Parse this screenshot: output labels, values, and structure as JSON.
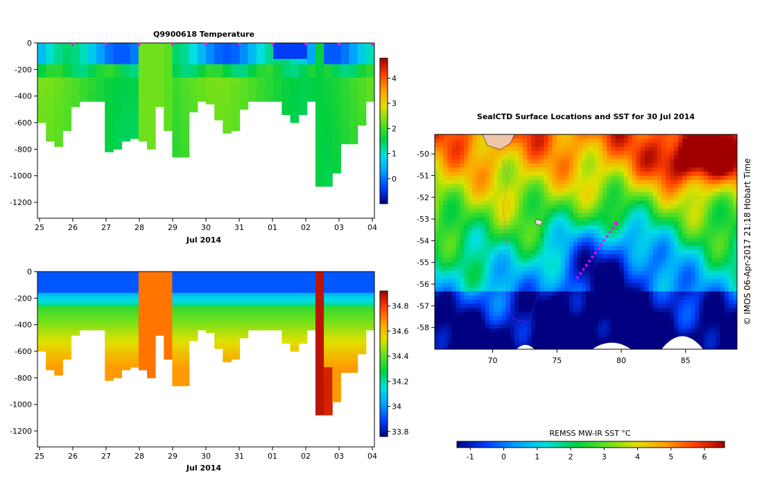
{
  "chart_data": [
    {
      "type": "heatmap",
      "title": "Q9900618  Temperature",
      "xlabel": "Jul 2014",
      "x_tick_labels": [
        "25",
        "26",
        "27",
        "28",
        "29",
        "30",
        "31",
        "01",
        "02",
        "03",
        "04"
      ],
      "y_tick_values": [
        0,
        -200,
        -400,
        -600,
        -800,
        -1000,
        -1200
      ],
      "ylim": [
        -1320,
        0
      ],
      "colorbar_ticks": [
        0,
        1,
        2,
        3,
        4
      ],
      "colorbar_range": [
        -1,
        4.8
      ],
      "colormap": [
        "#000080",
        "#0040ff",
        "#00a0ff",
        "#00e0e0",
        "#00d040",
        "#60e020",
        "#e0e000",
        "#ffa000",
        "#ff4000",
        "#a00000"
      ],
      "profile_marker_color": "#ff00ff"
    },
    {
      "type": "heatmap",
      "title": "",
      "xlabel": "Jul 2014",
      "x_tick_labels": [
        "25",
        "26",
        "27",
        "28",
        "29",
        "30",
        "31",
        "01",
        "02",
        "03",
        "04"
      ],
      "y_tick_values": [
        0,
        -200,
        -400,
        -600,
        -800,
        -1000,
        -1200
      ],
      "ylim": [
        -1320,
        0
      ],
      "colorbar_ticks": [
        33.8,
        34,
        34.2,
        34.4,
        34.6,
        34.8
      ],
      "colorbar_range": [
        33.76,
        34.92
      ],
      "colormap": [
        "#000080",
        "#0040ff",
        "#00a0ff",
        "#00e0e0",
        "#00d040",
        "#60e020",
        "#e0e000",
        "#ffa000",
        "#ff4000",
        "#a00000"
      ]
    },
    {
      "type": "heatmap",
      "title": "SealCTD Surface Locations and SST for 30 Jul 2014",
      "x_tick_values": [
        70,
        75,
        80,
        85
      ],
      "y_tick_values": [
        -50,
        -51,
        -52,
        -53,
        -54,
        -55,
        -56,
        -57,
        -58
      ],
      "xlim": [
        65.5,
        89
      ],
      "ylim": [
        -59,
        -49.1
      ],
      "track_color": "#ff00ff",
      "credit": "© IMOS 06-Apr-2017 21:18 Hobart Time",
      "colorbar_label": "REMSS MW-IR SST °C",
      "colorbar_ticks": [
        -1,
        0,
        1,
        2,
        3,
        4,
        5,
        6
      ],
      "colorbar_range": [
        -1.4,
        6.6
      ],
      "colormap": [
        "#000080",
        "#0040ff",
        "#00a0ff",
        "#00e0e0",
        "#00d040",
        "#60e020",
        "#e0e000",
        "#ffa000",
        "#ff4000",
        "#a00000"
      ]
    }
  ]
}
